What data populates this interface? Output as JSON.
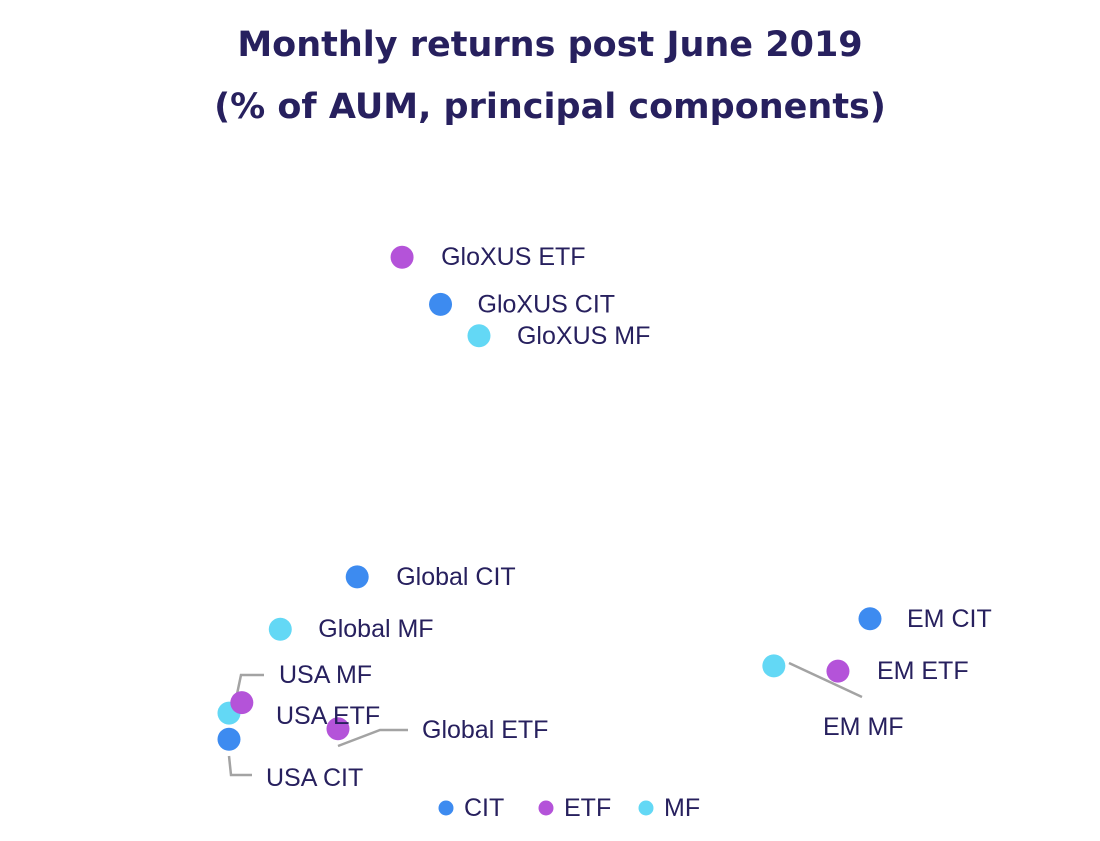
{
  "chart_data": {
    "type": "scatter",
    "title_line1": "Monthly returns post June 2019",
    "title_line2": "(% of AUM, principal components)",
    "xlabel": "",
    "ylabel": "",
    "grid": false,
    "legend_placement": "bottom-center",
    "xlim": [
      0,
      1
    ],
    "ylim": [
      0,
      1
    ],
    "colors": {
      "CIT": "#3d8bf0",
      "ETF": "#b453d9",
      "MF": "#63d8f5"
    },
    "legend": [
      {
        "type": "CIT",
        "label": "CIT"
      },
      {
        "type": "ETF",
        "label": "ETF"
      },
      {
        "type": "MF",
        "label": "MF"
      }
    ],
    "points": [
      {
        "label": "GloXUS ETF",
        "type": "ETF",
        "x": 0.27,
        "y": 0.95
      },
      {
        "label": "GloXUS CIT",
        "type": "CIT",
        "x": 0.33,
        "y": 0.86
      },
      {
        "label": "GloXUS MF",
        "type": "MF",
        "x": 0.39,
        "y": 0.8
      },
      {
        "label": "Global CIT",
        "type": "CIT",
        "x": 0.2,
        "y": 0.34
      },
      {
        "label": "Global MF",
        "type": "MF",
        "x": 0.08,
        "y": 0.24
      },
      {
        "label": "EM CIT",
        "type": "CIT",
        "x": 1.0,
        "y": 0.26
      },
      {
        "label": "EM ETF",
        "type": "ETF",
        "x": 0.95,
        "y": 0.16
      },
      {
        "label": "EM MF",
        "type": "MF",
        "x": 0.85,
        "y": 0.17
      },
      {
        "label": "USA MF",
        "type": "MF",
        "x": 0.0,
        "y": 0.08
      },
      {
        "label": "USA ETF",
        "type": "ETF",
        "x": 0.02,
        "y": 0.1
      },
      {
        "label": "USA CIT",
        "type": "CIT",
        "x": 0.0,
        "y": 0.03
      },
      {
        "label": "Global ETF",
        "type": "ETF",
        "x": 0.17,
        "y": 0.05
      }
    ]
  }
}
